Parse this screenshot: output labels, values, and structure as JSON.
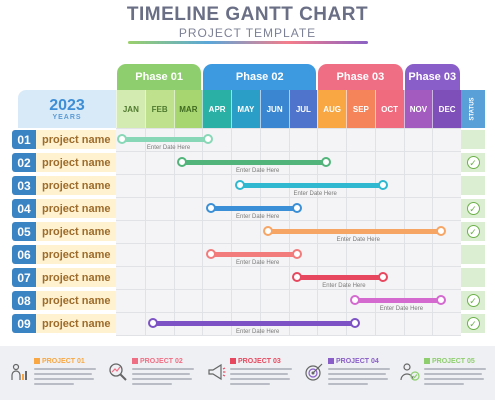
{
  "header": {
    "title": "TIMELINE GANTT CHART",
    "subtitle": "PROJECT TEMPLATE"
  },
  "year": {
    "value": "2023",
    "label": "YEARS"
  },
  "status_label": "STATUS",
  "phases": [
    {
      "label": "Phase 01",
      "color": "#8fce6e"
    },
    {
      "label": "Phase 02",
      "color": "#3d9ae0"
    },
    {
      "label": "Phase 03",
      "color": "#f06e84"
    },
    {
      "label": "Phase 03",
      "color": "#8a5ec8"
    }
  ],
  "months": [
    {
      "label": "JAN",
      "bg": "#d3eab0",
      "fg": "#4f7a2e"
    },
    {
      "label": "FEB",
      "bg": "#bfe18e",
      "fg": "#4f7a2e"
    },
    {
      "label": "MAR",
      "bg": "#a7d570",
      "fg": "#3e6a20"
    },
    {
      "label": "APR",
      "bg": "#2bb0a6",
      "fg": "#ffffff"
    },
    {
      "label": "MAY",
      "bg": "#2a9ec6",
      "fg": "#ffffff"
    },
    {
      "label": "JUN",
      "bg": "#3a86d0",
      "fg": "#ffffff"
    },
    {
      "label": "JUL",
      "bg": "#4f74cc",
      "fg": "#ffffff"
    },
    {
      "label": "AUG",
      "bg": "#f8a742",
      "fg": "#ffffff"
    },
    {
      "label": "SEP",
      "bg": "#f5845a",
      "fg": "#ffffff"
    },
    {
      "label": "OCT",
      "bg": "#f16b7e",
      "fg": "#ffffff"
    },
    {
      "label": "NOV",
      "bg": "#a45bbf",
      "fg": "#ffffff"
    },
    {
      "label": "DEC",
      "bg": "#7e4fb8",
      "fg": "#ffffff"
    }
  ],
  "rows": [
    {
      "num": "01",
      "name": "project name",
      "start": 0.2,
      "end": 3.2,
      "color": "#88d7b7",
      "note": "Enter Date Here",
      "status": false
    },
    {
      "num": "02",
      "name": "project name",
      "start": 2.3,
      "end": 7.3,
      "color": "#52b47a",
      "note": "Enter Date Here",
      "status": true
    },
    {
      "num": "03",
      "name": "project name",
      "start": 4.3,
      "end": 9.3,
      "color": "#2fb8cf",
      "note": "Enter Date Here",
      "status": false
    },
    {
      "num": "04",
      "name": "project name",
      "start": 3.3,
      "end": 6.3,
      "color": "#3a8fd6",
      "note": "Enter Date Here",
      "status": true
    },
    {
      "num": "05",
      "name": "project name",
      "start": 5.3,
      "end": 11.3,
      "color": "#f7a565",
      "note": "Enter Date Here",
      "status": true
    },
    {
      "num": "06",
      "name": "project name",
      "start": 3.3,
      "end": 6.3,
      "color": "#f27b7b",
      "note": "Enter Date Here",
      "status": false
    },
    {
      "num": "07",
      "name": "project name",
      "start": 6.3,
      "end": 9.3,
      "color": "#e8485f",
      "note": "Enter Date Here",
      "status": false
    },
    {
      "num": "08",
      "name": "project name",
      "start": 8.3,
      "end": 11.3,
      "color": "#d46ad0",
      "note": "Enter Date Here",
      "status": true
    },
    {
      "num": "09",
      "name": "project name",
      "start": 1.3,
      "end": 8.3,
      "color": "#7c52c4",
      "note": "Enter Date Here",
      "status": true
    }
  ],
  "footer_projects": [
    {
      "label": "PROJECT 01",
      "color": "#f8a742",
      "icon": "chart-person-icon"
    },
    {
      "label": "PROJECT 02",
      "color": "#f06e84",
      "icon": "magnifier-chart-icon"
    },
    {
      "label": "PROJECT 03",
      "color": "#e8485f",
      "icon": "megaphone-icon"
    },
    {
      "label": "PROJECT 04",
      "color": "#8a5ec8",
      "icon": "target-icon"
    },
    {
      "label": "PROJECT 05",
      "color": "#8fce6e",
      "icon": "person-check-icon"
    }
  ]
}
